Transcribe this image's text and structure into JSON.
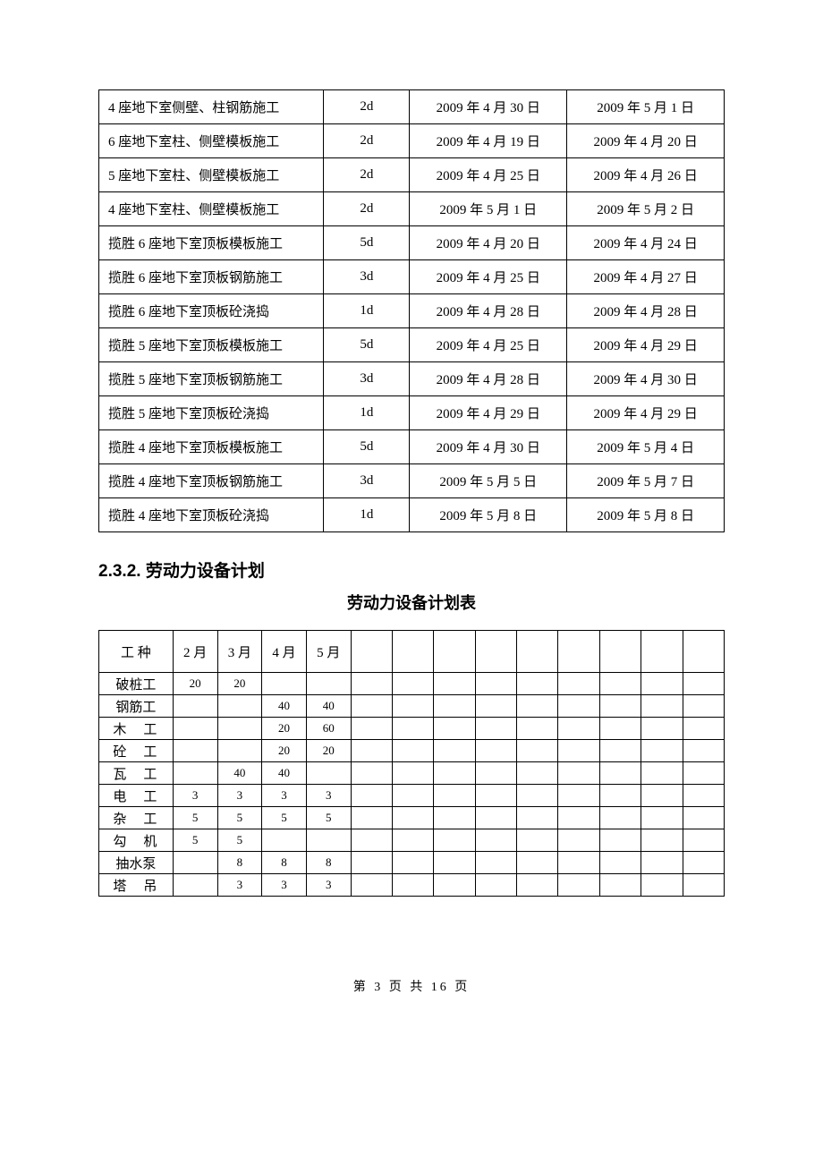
{
  "schedule": {
    "rows": [
      {
        "task": "4 座地下室侧壁、柱钢筋施工",
        "dur": "2d",
        "start": "2009 年 4 月 30 日",
        "end": "2009 年 5 月 1 日"
      },
      {
        "task": "6 座地下室柱、侧壁模板施工",
        "dur": "2d",
        "start": "2009 年 4 月 19 日",
        "end": "2009 年 4 月 20 日"
      },
      {
        "task": "5 座地下室柱、侧壁模板施工",
        "dur": "2d",
        "start": "2009 年 4 月 25 日",
        "end": "2009 年 4 月 26 日"
      },
      {
        "task": "4 座地下室柱、侧壁模板施工",
        "dur": "2d",
        "start": "2009 年 5 月 1 日",
        "end": "2009 年 5 月 2 日"
      },
      {
        "task": "揽胜 6 座地下室顶板模板施工",
        "dur": "5d",
        "start": "2009 年 4 月 20 日",
        "end": "2009 年 4 月 24 日"
      },
      {
        "task": "揽胜 6 座地下室顶板钢筋施工",
        "dur": "3d",
        "start": "2009 年 4 月 25 日",
        "end": "2009 年 4 月 27 日"
      },
      {
        "task": "揽胜 6 座地下室顶板砼浇捣",
        "dur": "1d",
        "start": "2009 年 4 月 28 日",
        "end": "2009 年 4 月 28 日"
      },
      {
        "task": "揽胜 5 座地下室顶板模板施工",
        "dur": "5d",
        "start": "2009 年 4 月 25 日",
        "end": "2009 年 4 月 29 日"
      },
      {
        "task": "揽胜 5 座地下室顶板钢筋施工",
        "dur": "3d",
        "start": "2009 年 4 月 28 日",
        "end": "2009 年 4 月 30 日"
      },
      {
        "task": "揽胜 5 座地下室顶板砼浇捣",
        "dur": "1d",
        "start": "2009 年 4 月 29 日",
        "end": "2009 年 4 月 29 日"
      },
      {
        "task": "揽胜 4 座地下室顶板模板施工",
        "dur": "5d",
        "start": "2009 年 4 月 30 日",
        "end": "2009 年 5 月 4 日"
      },
      {
        "task": "揽胜 4 座地下室顶板钢筋施工",
        "dur": "3d",
        "start": "2009 年 5 月 5 日",
        "end": "2009 年 5 月 7 日"
      },
      {
        "task": "揽胜 4 座地下室顶板砼浇捣",
        "dur": "1d",
        "start": "2009 年 5 月 8 日",
        "end": "2009 年 5 月 8 日"
      }
    ]
  },
  "section": {
    "number": "2.3.2.",
    "title": "劳动力设备计划",
    "table_title": "劳动力设备计划表"
  },
  "labor": {
    "header": {
      "worker": "工 种",
      "months": [
        "2 月",
        "3 月",
        "4 月",
        "5 月"
      ],
      "extra_cols": 9
    },
    "rows": [
      {
        "name": "破桩工",
        "tight": true,
        "vals": [
          "20",
          "20",
          "",
          ""
        ]
      },
      {
        "name": "钢筋工",
        "tight": true,
        "vals": [
          "",
          "",
          "40",
          "40"
        ]
      },
      {
        "name": "木　工",
        "tight": false,
        "vals": [
          "",
          "",
          "20",
          "60"
        ]
      },
      {
        "name": "砼　工",
        "tight": false,
        "vals": [
          "",
          "",
          "20",
          "20"
        ]
      },
      {
        "name": "瓦　工",
        "tight": false,
        "vals": [
          "",
          "40",
          "40",
          ""
        ]
      },
      {
        "name": "电　工",
        "tight": false,
        "vals": [
          "3",
          "3",
          "3",
          "3"
        ]
      },
      {
        "name": "杂　工",
        "tight": false,
        "vals": [
          "5",
          "5",
          "5",
          "5"
        ]
      },
      {
        "name": "勾　机",
        "tight": false,
        "vals": [
          "5",
          "5",
          "",
          ""
        ]
      },
      {
        "name": "抽水泵",
        "tight": true,
        "vals": [
          "",
          "8",
          "8",
          "8"
        ]
      },
      {
        "name": "塔　吊",
        "tight": false,
        "vals": [
          "",
          "3",
          "3",
          "3"
        ]
      }
    ]
  },
  "footer": "第 3 页 共 16 页"
}
